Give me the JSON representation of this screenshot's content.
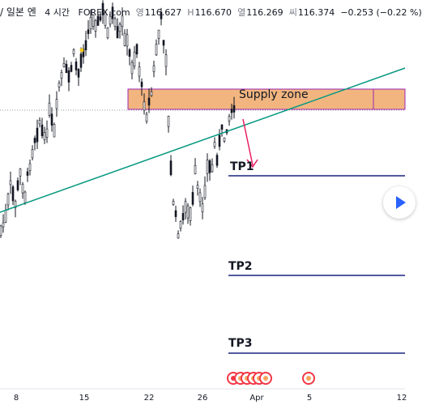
{
  "header": {
    "pair_suffix": "/ 일본 엔",
    "interval": "4 시간",
    "source": "FOREX.com",
    "open_label": "영",
    "open_value": "116.627",
    "high_label": "H",
    "high_value": "116.670",
    "low_label": "열",
    "low_value": "116.269",
    "close_label": "씨",
    "close_value": "116.374",
    "change": "−0.253 (−0.22 %)"
  },
  "chart_data": {
    "type": "candlestick",
    "x_ticks": [
      "8",
      "15",
      "22",
      "26",
      "Apr",
      "5",
      "12"
    ],
    "annotations": {
      "supply_zone_label": "Supply zone",
      "targets": [
        "TP1",
        "TP2",
        "TP3"
      ]
    },
    "colors": {
      "candle": "#131722",
      "zone_fill": "#f0a868",
      "zone_border": "#9c27b0",
      "trendline": "#089981",
      "target_line": "#1a237e",
      "arrow": "#e91e63",
      "event_icon": "#f23645"
    }
  }
}
